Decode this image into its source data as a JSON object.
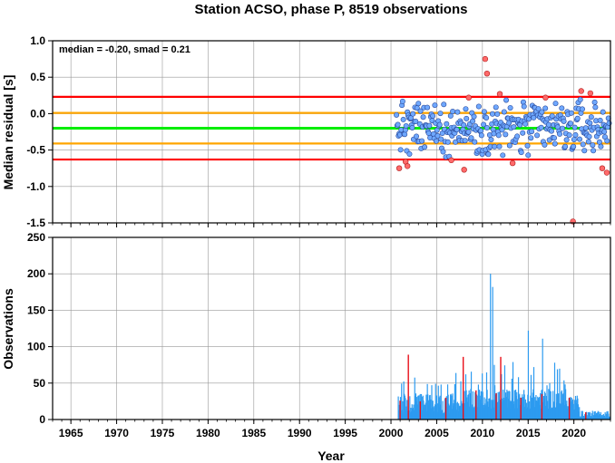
{
  "title": "Station ACSO, phase P, 8519 observations",
  "annotation": "median = -0.20, smad = 0.21",
  "xlabel": "Year",
  "colors": {
    "orange": "#ffa500",
    "red": "#ff0000",
    "green": "#00ee00",
    "point_fill": "#6fa8ff",
    "outlier_fill": "#ff6a6a",
    "bar_blue": "#2d9bf0",
    "bar_red": "#e8101a",
    "grid": "#999999"
  },
  "chart_data": [
    {
      "type": "scatter",
      "ylabel": "Median residual [s]",
      "xlim": [
        1963,
        2024
      ],
      "ylim": [
        -1.5,
        1.0
      ],
      "grid": true,
      "xticks": [
        1965,
        1970,
        1975,
        1980,
        1985,
        1990,
        1995,
        2000,
        2005,
        2010,
        2015,
        2020
      ],
      "yticks": [
        1.0,
        0.5,
        0.0,
        -0.5,
        -1.0,
        -1.5
      ],
      "ytick_labels": [
        "1.0",
        "0.5",
        "0.0",
        "-0.5",
        "-1.0",
        "-1.5"
      ],
      "reference_lines": [
        {
          "y": 0.23,
          "color": "red"
        },
        {
          "y": 0.01,
          "color": "orange"
        },
        {
          "y": -0.2,
          "color": "green"
        },
        {
          "y": -0.41,
          "color": "orange"
        },
        {
          "y": -0.63,
          "color": "red"
        }
      ],
      "outliers": [
        {
          "x": 2000.9,
          "y": -0.75
        },
        {
          "x": 2001.6,
          "y": -0.66
        },
        {
          "x": 2001.8,
          "y": -0.72
        },
        {
          "x": 2008.5,
          "y": 0.22
        },
        {
          "x": 2010.3,
          "y": 0.75
        },
        {
          "x": 2010.5,
          "y": 0.55
        },
        {
          "x": 2011.9,
          "y": 0.27
        },
        {
          "x": 2006.6,
          "y": -0.64
        },
        {
          "x": 2008.0,
          "y": -0.77
        },
        {
          "x": 2013.3,
          "y": -0.68
        },
        {
          "x": 2016.9,
          "y": 0.22
        },
        {
          "x": 2020.8,
          "y": 0.31
        },
        {
          "x": 2021.8,
          "y": 0.28
        },
        {
          "x": 2023.1,
          "y": -0.75
        },
        {
          "x": 2023.6,
          "y": -0.81
        },
        {
          "x": 2019.9,
          "y": -1.48
        }
      ]
    },
    {
      "type": "bar",
      "ylabel": "Observations",
      "xlim": [
        1963,
        2024
      ],
      "ylim": [
        0,
        250
      ],
      "grid": true,
      "xticks": [
        1965,
        1970,
        1975,
        1980,
        1985,
        1990,
        1995,
        2000,
        2005,
        2010,
        2015,
        2020
      ],
      "yticks": [
        250,
        200,
        150,
        100,
        50,
        0
      ],
      "ytick_labels": [
        "250",
        "200",
        "150",
        "100",
        "50",
        "0"
      ],
      "red_bars": [
        {
          "x": 2001.0,
          "y": 26
        },
        {
          "x": 2001.9,
          "y": 89
        },
        {
          "x": 2003.2,
          "y": 25
        },
        {
          "x": 2006.0,
          "y": 30
        },
        {
          "x": 2007.9,
          "y": 86
        },
        {
          "x": 2009.3,
          "y": 40
        },
        {
          "x": 2011.5,
          "y": 36
        },
        {
          "x": 2012.0,
          "y": 86
        },
        {
          "x": 2014.2,
          "y": 30
        },
        {
          "x": 2016.5,
          "y": 35
        },
        {
          "x": 2019.5,
          "y": 30
        },
        {
          "x": 2021.3,
          "y": 10
        }
      ]
    }
  ]
}
